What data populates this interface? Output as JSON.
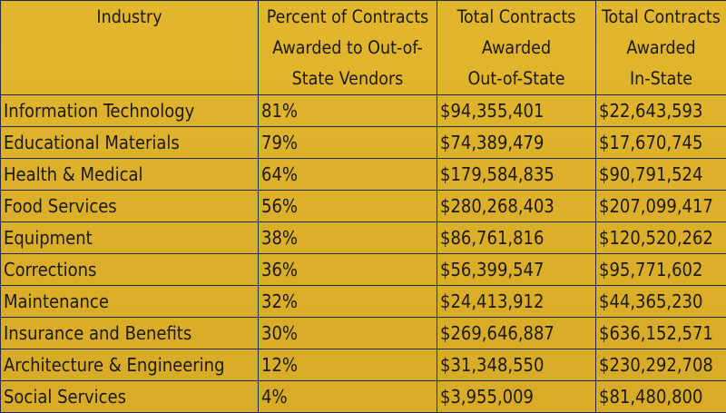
{
  "chart_data": {
    "type": "table",
    "columns": [
      [
        "Industry"
      ],
      [
        "Percent of Contracts",
        "Awarded to Out-of-",
        "State Vendors"
      ],
      [
        "Total Contracts",
        "Awarded",
        "Out-of-State"
      ],
      [
        "Total Contracts",
        "Awarded",
        "In-State"
      ]
    ],
    "rows": [
      [
        "Information Technology",
        "81%",
        "$94,355,401",
        "$22,643,593"
      ],
      [
        "Educational Materials",
        "79%",
        "$74,389,479",
        "$17,670,745"
      ],
      [
        "Health & Medical",
        "64%",
        "$179,584,835",
        "$90,791,524"
      ],
      [
        "Food Services",
        "56%",
        "$280,268,403",
        "$207,099,417"
      ],
      [
        "Equipment",
        "38%",
        "$86,761,816",
        "$120,520,262"
      ],
      [
        "Corrections",
        "36%",
        "$56,399,547",
        "$95,771,602"
      ],
      [
        "Maintenance",
        "32%",
        "$24,413,912",
        "$44,365,230"
      ],
      [
        "Insurance and Benefits",
        "30%",
        "$269,646,887",
        "$636,152,571"
      ],
      [
        "Architecture & Engineering",
        "12%",
        "$31,348,550",
        "$230,292,708"
      ],
      [
        "Social Services",
        "4%",
        "$3,955,009",
        "$81,480,800"
      ]
    ]
  },
  "colors": {
    "background": "#dcb02a",
    "border": "#1f2a55",
    "text": "#1c1a12"
  }
}
